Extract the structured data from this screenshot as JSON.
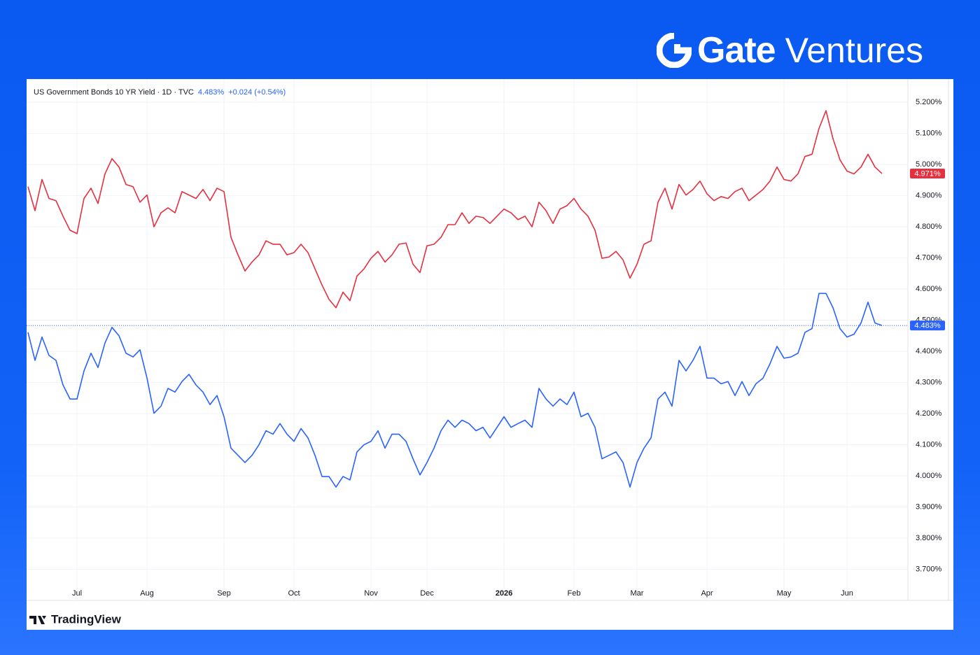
{
  "header": {
    "brand": "Gate",
    "subbrand": "Ventures"
  },
  "footer": {
    "logo": "TradingView"
  },
  "chart_data": {
    "type": "line",
    "legend": {
      "last": "4.483%",
      "change": "+0.024 (+0.54%)"
    },
    "categories": [
      null,
      null,
      null,
      null,
      null,
      null,
      null,
      "Jul",
      null,
      null,
      null,
      null,
      null,
      null,
      null,
      null,
      null,
      "Aug",
      null,
      null,
      null,
      null,
      null,
      null,
      null,
      null,
      null,
      null,
      "Sep",
      null,
      null,
      null,
      null,
      null,
      null,
      null,
      null,
      null,
      "Oct",
      null,
      null,
      null,
      null,
      null,
      null,
      null,
      null,
      null,
      null,
      "Nov",
      null,
      null,
      null,
      null,
      null,
      null,
      null,
      "Dec",
      null,
      null,
      null,
      null,
      null,
      null,
      null,
      null,
      null,
      null,
      "2026",
      null,
      null,
      null,
      null,
      null,
      null,
      null,
      null,
      null,
      "Feb",
      null,
      null,
      null,
      null,
      null,
      null,
      null,
      null,
      "Mar",
      null,
      null,
      null,
      null,
      null,
      null,
      null,
      null,
      null,
      "Apr",
      null,
      null,
      null,
      null,
      null,
      null,
      null,
      null,
      null,
      null,
      "May",
      null,
      null,
      null,
      null,
      null,
      null,
      null,
      null,
      "Jun",
      null,
      null,
      null,
      null,
      null
    ],
    "series": [
      {
        "color": "#e5303f",
        "last_label": "4.971%",
        "values": [
          4.929,
          4.852,
          4.952,
          4.891,
          4.884,
          4.834,
          4.789,
          4.778,
          4.891,
          4.924,
          4.875,
          4.97,
          5.019,
          4.992,
          4.936,
          4.929,
          4.879,
          4.902,
          4.8,
          4.845,
          4.861,
          4.845,
          4.913,
          4.902,
          4.891,
          4.92,
          4.884,
          4.924,
          4.913,
          4.766,
          4.71,
          4.658,
          4.687,
          4.71,
          4.755,
          4.744,
          4.744,
          4.71,
          4.717,
          4.744,
          4.717,
          4.665,
          4.613,
          4.567,
          4.54,
          4.59,
          4.563,
          4.642,
          4.665,
          4.699,
          4.721,
          4.687,
          4.71,
          4.744,
          4.748,
          4.68,
          4.653,
          4.739,
          4.744,
          4.766,
          4.807,
          4.807,
          4.845,
          4.811,
          4.834,
          4.83,
          4.811,
          4.834,
          4.857,
          4.845,
          4.823,
          4.834,
          4.8,
          4.879,
          4.852,
          4.811,
          4.857,
          4.868,
          4.891,
          4.857,
          4.834,
          4.789,
          4.699,
          4.703,
          4.721,
          4.694,
          4.635,
          4.68,
          4.744,
          4.755,
          4.879,
          4.924,
          4.857,
          4.936,
          4.902,
          4.92,
          4.947,
          4.906,
          4.884,
          4.897,
          4.891,
          4.913,
          4.924,
          4.884,
          4.902,
          4.92,
          4.947,
          4.992,
          4.952,
          4.947,
          4.97,
          5.026,
          5.033,
          5.116,
          5.173,
          5.083,
          5.015,
          4.979,
          4.97,
          4.992,
          5.033,
          4.992,
          4.971
        ]
      },
      {
        "name": "US Government Bonds 10 YR Yield · 1D · TVC",
        "color": "#2962ff",
        "last_label": "4.483%",
        "values": [
          4.461,
          4.371,
          4.446,
          4.387,
          4.371,
          4.292,
          4.247,
          4.247,
          4.337,
          4.394,
          4.348,
          4.427,
          4.477,
          4.45,
          4.394,
          4.382,
          4.405,
          4.314,
          4.201,
          4.224,
          4.281,
          4.269,
          4.303,
          4.326,
          4.292,
          4.269,
          4.229,
          4.258,
          4.19,
          4.089,
          4.066,
          4.043,
          4.066,
          4.1,
          4.145,
          4.134,
          4.168,
          4.134,
          4.111,
          4.152,
          4.122,
          4.066,
          3.998,
          3.998,
          3.964,
          3.998,
          3.987,
          4.077,
          4.1,
          4.111,
          4.145,
          4.089,
          4.134,
          4.134,
          4.111,
          4.055,
          4.003,
          4.043,
          4.089,
          4.145,
          4.179,
          4.156,
          4.179,
          4.168,
          4.145,
          4.156,
          4.122,
          4.156,
          4.19,
          4.156,
          4.168,
          4.179,
          4.156,
          4.281,
          4.247,
          4.224,
          4.247,
          4.229,
          4.269,
          4.19,
          4.201,
          4.156,
          4.055,
          4.066,
          4.077,
          4.043,
          3.964,
          4.043,
          4.089,
          4.122,
          4.247,
          4.269,
          4.224,
          4.371,
          4.337,
          4.371,
          4.416,
          4.314,
          4.314,
          4.296,
          4.303,
          4.258,
          4.303,
          4.258,
          4.296,
          4.314,
          4.36,
          4.416,
          4.378,
          4.382,
          4.394,
          4.461,
          4.473,
          4.586,
          4.586,
          4.54,
          4.473,
          4.446,
          4.455,
          4.491,
          4.558,
          4.491,
          4.483
        ]
      }
    ],
    "ylim": [
      3.6,
      5.27
    ],
    "yticks": [
      {
        "value": 3.7,
        "label": "3.700%"
      },
      {
        "value": 3.8,
        "label": "3.800%"
      },
      {
        "value": 3.9,
        "label": "3.900%"
      },
      {
        "value": 4.0,
        "label": "4.000%"
      },
      {
        "value": 4.1,
        "label": "4.100%"
      },
      {
        "value": 4.2,
        "label": "4.200%"
      },
      {
        "value": 4.3,
        "label": "4.300%"
      },
      {
        "value": 4.4,
        "label": "4.400%"
      },
      {
        "value": 4.5,
        "label": "4.500%"
      },
      {
        "value": 4.6,
        "label": "4.600%"
      },
      {
        "value": 4.7,
        "label": "4.700%"
      },
      {
        "value": 4.8,
        "label": "4.800%"
      },
      {
        "value": 4.9,
        "label": "4.900%"
      },
      {
        "value": 5.0,
        "label": "5.000%"
      },
      {
        "value": 5.1,
        "label": "5.100%"
      },
      {
        "value": 5.2,
        "label": "5.200%"
      }
    ],
    "grid": true
  }
}
